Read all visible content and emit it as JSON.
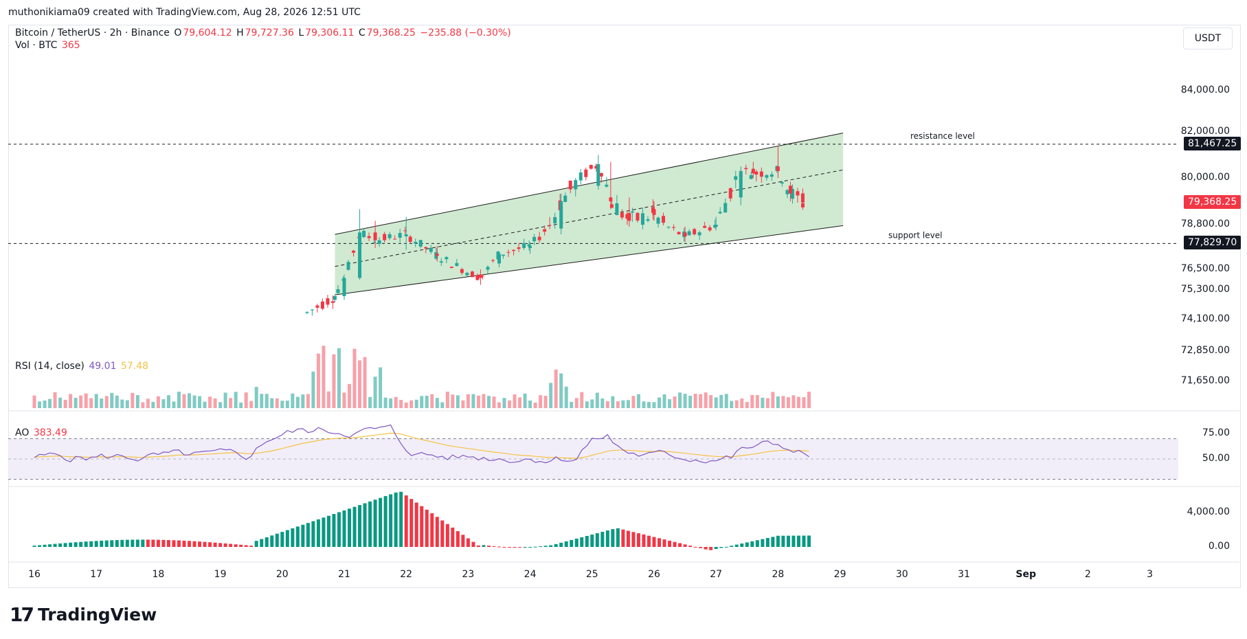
{
  "header": {
    "attribution": "muthonikiama09 created with TradingView.com, Aug 28, 2026 12:51 UTC"
  },
  "toolbar": {
    "currency": "USDT"
  },
  "symbol": {
    "name": "Bitcoin / TetherUS · 2h · Binance",
    "open_label": "O",
    "open": "79,604.12",
    "high_label": "H",
    "high": "79,727.36",
    "low_label": "L",
    "low": "79,306.11",
    "close_label": "C",
    "close": "79,368.25",
    "change": "−235.88 (−0.30%)"
  },
  "volume": {
    "label": "Vol · BTC",
    "value": "365"
  },
  "rsi": {
    "label": "RSI (14, close)",
    "value": "49.01",
    "ma_value": "57.48"
  },
  "ao": {
    "label": "AO",
    "value": "383.49"
  },
  "footer": {
    "brand": "TradingView",
    "logo_mark": "17"
  },
  "colors": {
    "up": "#26a69a",
    "down": "#f23645",
    "channel_fill": "#c8e6c9",
    "rsi": "#7e57c2",
    "rsi_ma": "#f5c242",
    "ao_up": "#089981",
    "ao_down": "#f23645"
  },
  "chart_data": [
    {
      "type": "candlestick",
      "title": "Bitcoin / TetherUS · 2h · Binance",
      "x_ticks": [
        "16",
        "17",
        "18",
        "19",
        "20",
        "21",
        "22",
        "23",
        "24",
        "25",
        "26",
        "27",
        "28",
        "29",
        "30",
        "31",
        "Sep",
        "2",
        "3"
      ],
      "y_ticks": [
        "84,000.00",
        "82,000.00",
        "80,000.00",
        "78,800.00",
        "76,500.00",
        "75,300.00",
        "74,100.00",
        "72,850.00",
        "71,650.00"
      ],
      "y_tick_values": [
        84000,
        82000,
        80000,
        78800,
        76500,
        75300,
        74100,
        72850,
        71650
      ],
      "annotations": [
        {
          "text": "resistance level",
          "price": 81467.25,
          "tag": "81,467.25"
        },
        {
          "text": "support level",
          "price": 77829.7,
          "tag": "77,829.70"
        }
      ],
      "last_price": {
        "price": 79368.25,
        "tag": "79,368.25"
      },
      "channel": {
        "x_start": 20.85,
        "x_end": 29.05,
        "upper": [
          78300,
          81950
        ],
        "mid": [
          76650,
          80350
        ],
        "lower": [
          75100,
          78750
        ]
      },
      "candle_timeframe_hours": 2,
      "candles_ohlc_sample": [
        [
          20.85,
          74900,
          75100,
          74800,
          75050
        ],
        [
          21.0,
          75050,
          76200,
          74900,
          76000
        ],
        [
          21.25,
          76000,
          79200,
          75900,
          78400
        ],
        [
          21.5,
          78400,
          78900,
          77600,
          78000
        ],
        [
          22.0,
          78200,
          79000,
          77500,
          78300
        ],
        [
          22.5,
          77300,
          77700,
          76900,
          77200
        ],
        [
          23.2,
          76200,
          76500,
          75600,
          76000
        ],
        [
          23.5,
          76800,
          77400,
          76600,
          77300
        ],
        [
          24.0,
          77600,
          77900,
          77300,
          77700
        ],
        [
          24.5,
          78600,
          79600,
          78300,
          79400
        ],
        [
          25.1,
          79800,
          81000,
          79700,
          80600
        ],
        [
          25.3,
          79500,
          80700,
          79200,
          79400
        ],
        [
          25.6,
          79100,
          79500,
          78700,
          78900
        ],
        [
          26.0,
          79200,
          79400,
          78900,
          79050
        ],
        [
          26.5,
          78400,
          78700,
          77900,
          78200
        ],
        [
          27.0,
          78700,
          79000,
          78500,
          78800
        ],
        [
          27.4,
          79500,
          80500,
          79300,
          80300
        ],
        [
          27.6,
          80400,
          80700,
          80000,
          80200
        ],
        [
          28.0,
          80500,
          81400,
          80000,
          80300
        ],
        [
          28.2,
          79800,
          79900,
          79400,
          79600
        ],
        [
          28.4,
          79604.12,
          79727.36,
          79306.11,
          79368.25
        ]
      ]
    },
    {
      "type": "bar",
      "title": "Vol · BTC",
      "last_value": 365
    },
    {
      "type": "line",
      "title": "RSI (14, close)",
      "series": [
        {
          "name": "RSI",
          "last": 49.01
        },
        {
          "name": "MA",
          "last": 57.48
        }
      ],
      "y_ticks": [
        "75.00",
        "50.00"
      ],
      "band": [
        30,
        70
      ]
    },
    {
      "type": "bar",
      "title": "AO",
      "last_value": 383.49,
      "y_ticks": [
        "4,000.00",
        "0.00"
      ]
    }
  ]
}
